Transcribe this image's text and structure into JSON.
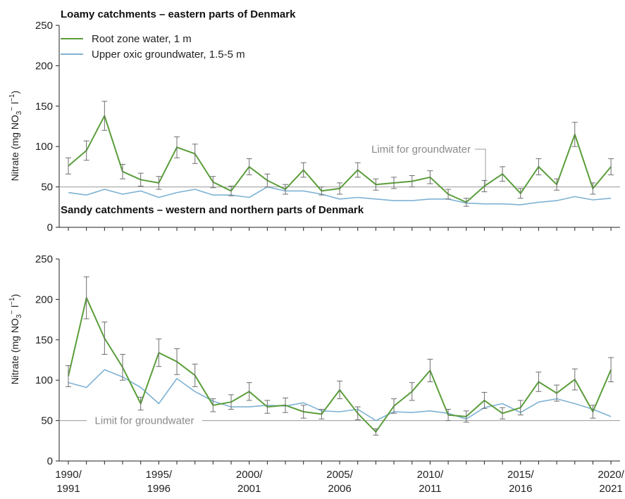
{
  "colors": {
    "root_zone": "#5a9e3a",
    "groundwater": "#7eb2d4",
    "error_bar": "#6e6e6e",
    "limit_line": "#9a9a9a",
    "axis": "#222222"
  },
  "x_tick_labels": [
    {
      "line1": "1990/",
      "line2": "1991"
    },
    {
      "line1": "1995/",
      "line2": "1996"
    },
    {
      "line1": "2000/",
      "line2": "2001"
    },
    {
      "line1": "2005/",
      "line2": "2006"
    },
    {
      "line1": "2010/",
      "line2": "2011"
    },
    {
      "line1": "2015/",
      "line2": "2016"
    },
    {
      "line1": "2020/",
      "line2": "2021"
    }
  ],
  "y_axis_label": "Nitrate (mg NO3− l−1)",
  "legend": {
    "placement": "top-left",
    "root_zone": "Root zone water, 1 m",
    "groundwater": "Upper oxic groundwater, 1.5-5 m"
  },
  "chart_data": [
    {
      "type": "line",
      "title": "Loamy catchments – eastern parts of Denmark",
      "ylabel": "Nitrate (mg NO3− l−1)",
      "ylim": [
        0,
        250
      ],
      "yticks": [
        0,
        50,
        100,
        150,
        200,
        250
      ],
      "x": [
        "1990/1991",
        "1991/1992",
        "1992/1993",
        "1993/1994",
        "1994/1995",
        "1995/1996",
        "1996/1997",
        "1997/1998",
        "1998/1999",
        "1999/2000",
        "2000/2001",
        "2001/2002",
        "2002/2003",
        "2003/2004",
        "2004/2005",
        "2005/2006",
        "2006/2007",
        "2007/2008",
        "2008/2009",
        "2009/2010",
        "2010/2011",
        "2011/2012",
        "2012/2013",
        "2013/2014",
        "2014/2015",
        "2015/2016",
        "2016/2017",
        "2017/2018",
        "2018/2019",
        "2019/2020",
        "2020/2021"
      ],
      "limit": {
        "value": 50,
        "label": "Limit for groundwater"
      },
      "series": [
        {
          "name": "Root zone water, 1 m",
          "values": [
            76,
            95,
            138,
            69,
            59,
            55,
            99,
            91,
            56,
            45,
            75,
            58,
            47,
            71,
            45,
            48,
            71,
            53,
            55,
            57,
            62,
            41,
            31,
            51,
            66,
            42,
            75,
            53,
            115,
            48,
            75
          ],
          "error": [
            10,
            12,
            18,
            9,
            8,
            8,
            13,
            12,
            7,
            6,
            10,
            8,
            6,
            9,
            5,
            7,
            9,
            7,
            7,
            7,
            8,
            6,
            5,
            7,
            9,
            6,
            10,
            7,
            15,
            7,
            10
          ]
        },
        {
          "name": "Upper oxic groundwater, 1.5-5 m",
          "values": [
            43,
            40,
            47,
            41,
            45,
            37,
            43,
            47,
            40,
            40,
            37,
            50,
            45,
            45,
            41,
            35,
            37,
            35,
            33,
            33,
            35,
            35,
            30,
            29,
            29,
            28,
            31,
            33,
            38,
            34,
            36
          ]
        }
      ]
    },
    {
      "type": "line",
      "title": "Sandy catchments – western and northern parts of Denmark",
      "ylabel": "Nitrate (mg NO3− l−1)",
      "ylim": [
        0,
        250
      ],
      "yticks": [
        0,
        50,
        100,
        150,
        200,
        250
      ],
      "x": [
        "1990/1991",
        "1991/1992",
        "1992/1993",
        "1993/1994",
        "1994/1995",
        "1995/1996",
        "1996/1997",
        "1997/1998",
        "1998/1999",
        "1999/2000",
        "2000/2001",
        "2001/2002",
        "2002/2003",
        "2003/2004",
        "2004/2005",
        "2005/2006",
        "2006/2007",
        "2007/2008",
        "2008/2009",
        "2009/2010",
        "2010/2011",
        "2011/2012",
        "2012/2013",
        "2013/2014",
        "2014/2015",
        "2015/2016",
        "2016/2017",
        "2017/2018",
        "2018/2019",
        "2019/2020",
        "2020/2021"
      ],
      "limit": {
        "value": 50,
        "label": "Limit for groundwater"
      },
      "series": [
        {
          "name": "Root zone water, 1 m",
          "values": [
            105,
            202,
            152,
            116,
            71,
            134,
            123,
            106,
            69,
            73,
            86,
            67,
            69,
            61,
            58,
            88,
            59,
            36,
            68,
            86,
            112,
            57,
            55,
            75,
            59,
            66,
            98,
            84,
            101,
            61,
            113
          ],
          "error": [
            13,
            26,
            20,
            16,
            8,
            17,
            16,
            14,
            8,
            9,
            11,
            8,
            9,
            8,
            6,
            11,
            8,
            4,
            9,
            11,
            14,
            7,
            7,
            10,
            7,
            9,
            12,
            10,
            13,
            8,
            15
          ]
        },
        {
          "name": "Upper oxic groundwater, 1.5-5 m",
          "values": [
            97,
            91,
            113,
            104,
            91,
            71,
            102,
            86,
            74,
            67,
            67,
            69,
            68,
            72,
            62,
            61,
            64,
            50,
            61,
            60,
            62,
            59,
            52,
            66,
            71,
            60,
            73,
            77,
            71,
            64,
            55
          ]
        }
      ]
    }
  ]
}
